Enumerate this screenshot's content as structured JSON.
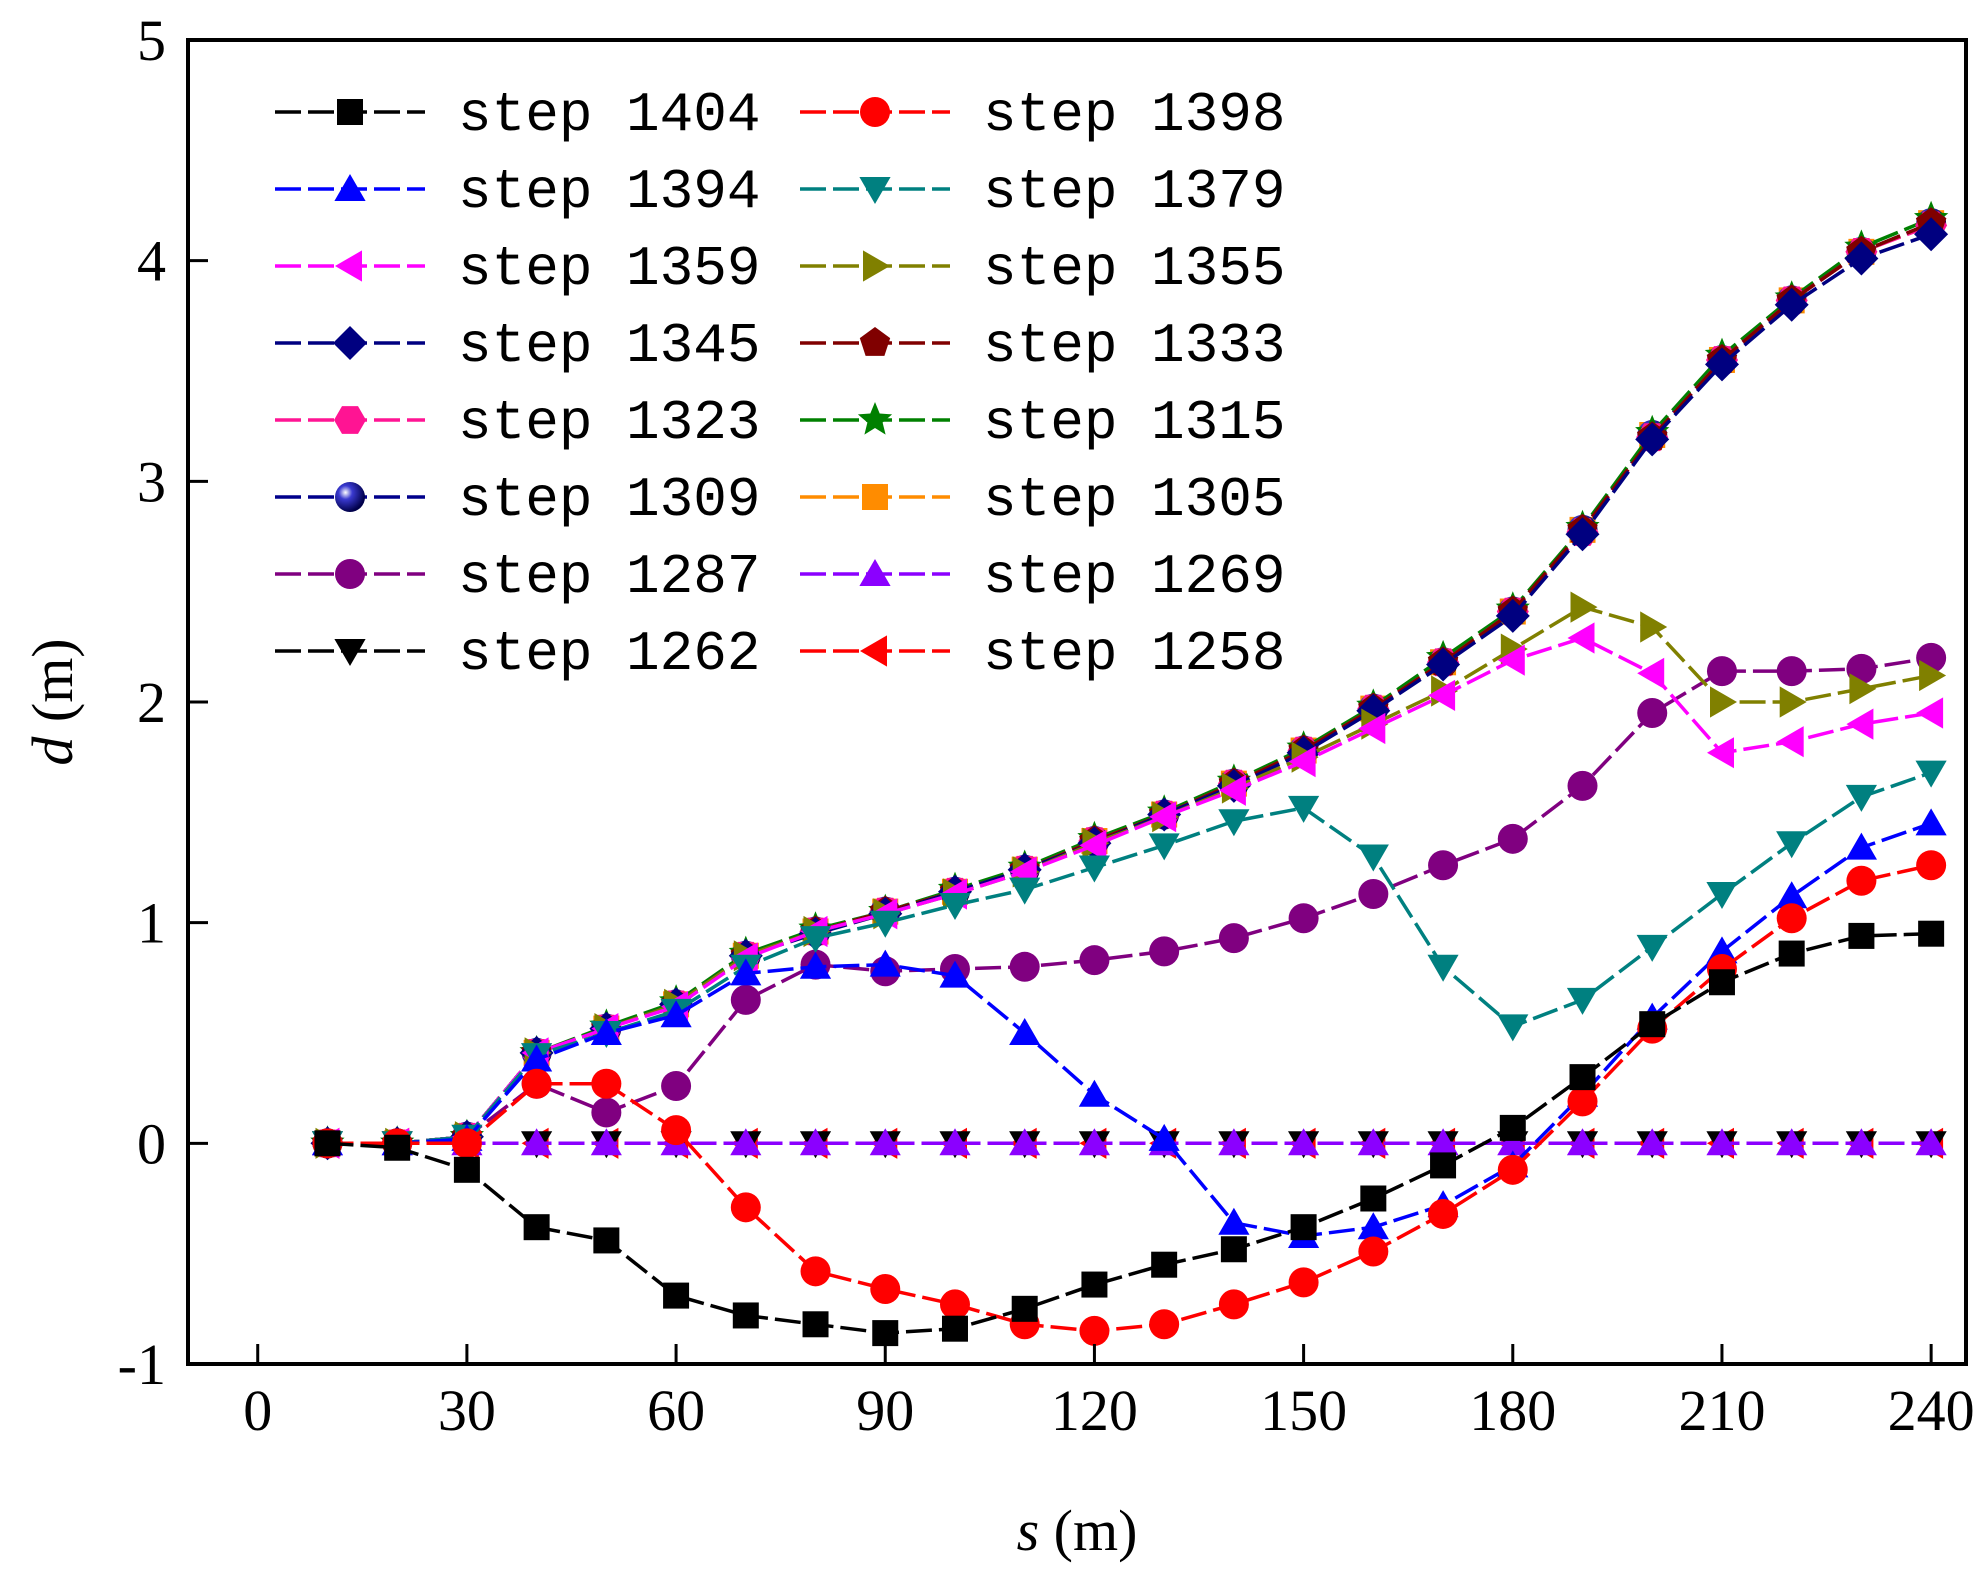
{
  "chart_data": {
    "type": "line",
    "title": "",
    "xlabel": {
      "var": "s",
      "unit": " (m)"
    },
    "ylabel": {
      "var": "d",
      "unit": " (m)"
    },
    "xlim": [
      -10,
      245
    ],
    "ylim": [
      -1,
      5
    ],
    "x_ticks": [
      0,
      30,
      60,
      90,
      120,
      150,
      180,
      210,
      240
    ],
    "x_tick_labels": [
      "0",
      "30",
      "60",
      "90",
      "120",
      "150",
      "180",
      "210",
      "240"
    ],
    "y_ticks": [
      -1,
      0,
      1,
      2,
      3,
      4,
      5
    ],
    "y_tick_labels": [
      "-1",
      "0",
      "1",
      "2",
      "3",
      "4",
      "5"
    ],
    "legend_position": "top-left",
    "grid": false,
    "x": [
      10,
      20,
      30,
      40,
      50,
      60,
      70,
      80,
      90,
      100,
      110,
      120,
      130,
      140,
      150,
      160,
      170,
      180,
      190,
      200,
      210,
      220,
      230,
      240
    ],
    "series": [
      {
        "name": "step 1404",
        "color": "#000000",
        "marker": "square",
        "values": [
          0,
          -0.02,
          -0.12,
          -0.38,
          -0.44,
          -0.69,
          -0.78,
          -0.82,
          -0.86,
          -0.84,
          -0.75,
          -0.64,
          -0.55,
          -0.48,
          -0.38,
          -0.25,
          -0.1,
          0.07,
          0.3,
          0.54,
          0.73,
          0.86,
          0.94,
          0.95
        ]
      },
      {
        "name": "step 1398",
        "color": "#ff0000",
        "marker": "circle",
        "values": [
          0,
          0,
          0,
          0.27,
          0.27,
          0.06,
          -0.29,
          -0.58,
          -0.66,
          -0.73,
          -0.82,
          -0.85,
          -0.82,
          -0.73,
          -0.63,
          -0.49,
          -0.32,
          -0.12,
          0.19,
          0.52,
          0.79,
          1.02,
          1.19,
          1.26
        ]
      },
      {
        "name": "step 1394",
        "color": "#0000ff",
        "marker": "triangle-up",
        "values": [
          0,
          0,
          0.02,
          0.38,
          0.5,
          0.58,
          0.77,
          0.8,
          0.81,
          0.76,
          0.5,
          0.22,
          0.02,
          -0.36,
          -0.42,
          -0.38,
          -0.28,
          -0.1,
          0.22,
          0.57,
          0.87,
          1.12,
          1.34,
          1.45
        ]
      },
      {
        "name": "step 1379",
        "color": "#008080",
        "marker": "triangle-down",
        "values": [
          0,
          0,
          0.03,
          0.4,
          0.5,
          0.6,
          0.8,
          0.93,
          1.0,
          1.08,
          1.15,
          1.25,
          1.35,
          1.46,
          1.52,
          1.3,
          0.8,
          0.53,
          0.65,
          0.89,
          1.13,
          1.36,
          1.57,
          1.68
        ]
      },
      {
        "name": "step 1359",
        "color": "#ff00ff",
        "marker": "triangle-left",
        "values": [
          0,
          0,
          0.03,
          0.41,
          0.52,
          0.62,
          0.84,
          0.96,
          1.04,
          1.13,
          1.23,
          1.35,
          1.48,
          1.6,
          1.73,
          1.88,
          2.03,
          2.19,
          2.29,
          2.13,
          1.77,
          1.82,
          1.9,
          1.95
        ]
      },
      {
        "name": "step 1355",
        "color": "#808000",
        "marker": "triangle-right",
        "values": [
          0,
          0,
          0.03,
          0.41,
          0.52,
          0.63,
          0.85,
          0.96,
          1.04,
          1.13,
          1.23,
          1.36,
          1.48,
          1.61,
          1.75,
          1.9,
          2.05,
          2.24,
          2.43,
          2.34,
          2.0,
          2.0,
          2.06,
          2.12
        ]
      },
      {
        "name": "step 1345",
        "color": "#000080",
        "marker": "diamond",
        "values": [
          0,
          0,
          0.03,
          0.41,
          0.52,
          0.63,
          0.85,
          0.95,
          1.04,
          1.14,
          1.24,
          1.36,
          1.49,
          1.62,
          1.77,
          1.96,
          2.17,
          2.39,
          2.76,
          3.19,
          3.53,
          3.8,
          4.01,
          4.12
        ]
      },
      {
        "name": "step 1333",
        "color": "#800000",
        "marker": "pentagon",
        "values": [
          0,
          0,
          0.03,
          0.41,
          0.52,
          0.63,
          0.85,
          0.96,
          1.05,
          1.14,
          1.24,
          1.37,
          1.49,
          1.63,
          1.78,
          1.97,
          2.18,
          2.41,
          2.78,
          3.2,
          3.55,
          3.82,
          4.04,
          4.17
        ]
      },
      {
        "name": "step 1323",
        "color": "#ff1493",
        "marker": "hexagon",
        "values": [
          0,
          0,
          0.03,
          0.41,
          0.52,
          0.63,
          0.85,
          0.96,
          1.05,
          1.14,
          1.24,
          1.37,
          1.49,
          1.63,
          1.78,
          1.97,
          2.18,
          2.41,
          2.77,
          3.2,
          3.55,
          3.82,
          4.04,
          4.16
        ]
      },
      {
        "name": "step 1315",
        "color": "#008000",
        "marker": "star",
        "values": [
          0,
          0,
          0.03,
          0.41,
          0.53,
          0.64,
          0.86,
          0.97,
          1.05,
          1.15,
          1.25,
          1.38,
          1.5,
          1.64,
          1.79,
          1.98,
          2.2,
          2.42,
          2.79,
          3.22,
          3.57,
          3.83,
          4.06,
          4.19
        ]
      },
      {
        "name": "step 1309",
        "color": "#00008b",
        "marker": "sphere",
        "values": [
          0,
          0,
          0.03,
          0.41,
          0.52,
          0.63,
          0.85,
          0.96,
          1.05,
          1.14,
          1.24,
          1.37,
          1.49,
          1.63,
          1.78,
          1.97,
          2.18,
          2.41,
          2.78,
          3.21,
          3.55,
          3.82,
          4.04,
          4.17
        ]
      },
      {
        "name": "step 1305",
        "color": "#ff8c00",
        "marker": "square",
        "values": [
          0,
          0,
          0.03,
          0.41,
          0.52,
          0.63,
          0.85,
          0.96,
          1.05,
          1.14,
          1.24,
          1.37,
          1.49,
          1.63,
          1.78,
          1.97,
          2.18,
          2.41,
          2.78,
          3.21,
          3.55,
          3.82,
          4.04,
          4.17
        ]
      },
      {
        "name": "step 1287",
        "color": "#800080",
        "marker": "circle",
        "values": [
          0,
          0,
          0.03,
          0.27,
          0.14,
          0.26,
          0.65,
          0.81,
          0.78,
          0.79,
          0.8,
          0.83,
          0.87,
          0.93,
          1.02,
          1.13,
          1.26,
          1.38,
          1.62,
          1.95,
          2.14,
          2.14,
          2.15,
          2.2
        ]
      },
      {
        "name": "step 1269",
        "color": "#8b00ff",
        "marker": "triangle-up",
        "values": [
          0,
          0,
          0,
          0,
          0,
          0,
          0,
          0,
          0,
          0,
          0,
          0,
          0,
          0,
          0,
          0,
          0,
          0,
          0,
          0,
          0,
          0,
          0,
          0
        ]
      },
      {
        "name": "step 1262",
        "color": "#000000",
        "marker": "triangle-down",
        "values": [
          0,
          0,
          0,
          0,
          0,
          0,
          0,
          0,
          0,
          0,
          0,
          0,
          0,
          0,
          0,
          0,
          0,
          0,
          0,
          0,
          0,
          0,
          0,
          0
        ]
      },
      {
        "name": "step 1258",
        "color": "#ff0000",
        "marker": "triangle-left",
        "values": [
          0,
          0,
          0,
          0,
          0,
          0,
          0,
          0,
          0,
          0,
          0,
          0,
          0,
          0,
          0,
          0,
          0,
          0,
          0,
          0,
          0,
          0,
          0,
          0
        ]
      }
    ]
  }
}
